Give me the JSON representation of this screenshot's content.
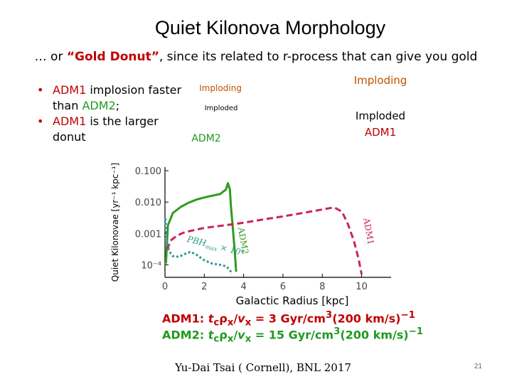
{
  "slide": {
    "title": "Quiet Kilonova Morphology",
    "subtitle_prefix": "… or ",
    "subtitle_highlight": "“Gold Donut”",
    "subtitle_suffix": ", since its related to r-process that can give you gold",
    "bullets": [
      {
        "a": "ADM1",
        "b": " implosion faster than ",
        "c": "ADM2",
        "d": ";"
      },
      {
        "a": "ADM1",
        "b": " is the larger donut",
        "c": "",
        "d": ""
      }
    ],
    "annotations": {
      "imploding_small": "Imploding",
      "imploded_small": "Imploded",
      "adm2_label": "ADM2",
      "imploding_big": "Imploding",
      "imploded_big": "Imploded",
      "adm1_label": "ADM1"
    },
    "formulas": {
      "adm1": {
        "label": "ADM1:",
        "expr": "t",
        "sub": "c",
        "mid": "ρ",
        "sub2": "x",
        "slash": "/",
        "v": "v",
        "sub3": "x",
        "eq": " =  3  Gyr/cm",
        "sup": "3",
        "tail": "(200 km/s)",
        "sup2": "−1"
      },
      "adm2": {
        "label": "ADM2:",
        "expr": "t",
        "sub": "c",
        "mid": "ρ",
        "sub2": "x",
        "slash": "/",
        "v": "v",
        "sub3": "x",
        "eq": " = 15 Gyr/cm",
        "sup": "3",
        "tail": "(200 km/s)",
        "sup2": "−1"
      }
    },
    "footer": "Yu-Dai Tsai ( Cornell), BNL 2017",
    "page_number": "21"
  },
  "chart_data": {
    "type": "line",
    "title": "",
    "xlabel": "Galactic Radius  [kpc]",
    "ylabel": "Quiet Kilonovae [yr⁻¹ kpc⁻¹]",
    "yscale": "log",
    "xlim": [
      0,
      11.5
    ],
    "ylim": [
      4e-05,
      0.13
    ],
    "x_ticks": [
      0,
      2,
      4,
      6,
      8,
      10
    ],
    "x_tick_labels": [
      "0",
      "2",
      "4",
      "6",
      "8",
      "10"
    ],
    "y_ticks": [
      0.0001,
      0.001,
      0.01,
      0.1
    ],
    "y_tick_labels": [
      "10⁻⁴",
      "0.001",
      "0.010",
      "0.100"
    ],
    "series": [
      {
        "name": "ADM2",
        "color": "#2e9c1f",
        "style": "solid",
        "x": [
          0.05,
          0.15,
          0.4,
          0.8,
          1.2,
          1.6,
          2.0,
          2.4,
          2.8,
          3.1,
          3.2,
          3.3,
          3.35,
          3.45,
          3.55,
          3.62
        ],
        "y": [
          0.00011,
          0.0018,
          0.0045,
          0.007,
          0.0095,
          0.012,
          0.014,
          0.016,
          0.018,
          0.025,
          0.04,
          0.025,
          0.008,
          0.0015,
          0.00025,
          6e-05
        ]
      },
      {
        "name": "ADM1",
        "color": "#c8245a",
        "style": "dashed",
        "x": [
          0.1,
          0.3,
          0.6,
          1.0,
          2.0,
          3.0,
          4.0,
          5.0,
          6.0,
          7.0,
          8.0,
          8.6,
          9.0,
          9.3,
          9.6,
          9.85,
          10.0
        ],
        "y": [
          0.0003,
          0.0006,
          0.00085,
          0.0011,
          0.0015,
          0.0018,
          0.0022,
          0.0028,
          0.0035,
          0.0045,
          0.0058,
          0.0068,
          0.005,
          0.002,
          0.0006,
          0.00015,
          5e-05
        ]
      },
      {
        "name": "PBH_max × 10⁴",
        "color": "#2a9a90",
        "style": "dotted",
        "x": [
          0.02,
          0.05,
          0.1,
          0.2,
          0.4,
          0.7,
          1.0,
          1.3,
          1.6,
          2.0,
          2.4,
          2.8,
          3.1,
          3.3,
          3.4
        ],
        "y": [
          0.003,
          0.0015,
          0.0006,
          0.00028,
          0.00019,
          0.00018,
          0.00022,
          0.00026,
          0.00021,
          0.00014,
          0.00011,
          0.0001,
          9e-05,
          7e-05,
          5e-05
        ]
      }
    ],
    "curve_annotations": [
      {
        "text": "ADM2",
        "series": "ADM2"
      },
      {
        "text": "ADM1",
        "series": "ADM1"
      },
      {
        "text": "PBH",
        "sub": "max",
        "suffix": " × 10⁴",
        "series": "PBH_max × 10⁴"
      }
    ]
  }
}
